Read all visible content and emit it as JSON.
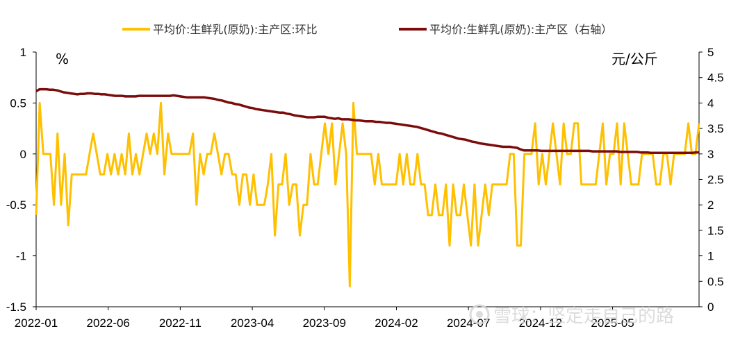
{
  "colors": {
    "series_mom": "#FFC000",
    "series_price": "#7B0C0C",
    "axis": "#000000"
  },
  "watermark": {
    "text": "雪球：坚定走自己的路",
    "icon": "snowball-logo-icon"
  },
  "chart_data": {
    "type": "line",
    "left_unit": "%",
    "right_unit": "元/公斤",
    "legend_position": "top",
    "grid": false,
    "x_start": "2022-01",
    "x_ticks": [
      "2022-01",
      "2022-06",
      "2022-11",
      "2023-04",
      "2023-09",
      "2024-02",
      "2024-07",
      "2024-12",
      "2025-05"
    ],
    "y_left": {
      "min": -1.5,
      "max": 1,
      "ticks": [
        "1",
        "0.5",
        "0",
        "-0.5",
        "-1",
        "-1.5"
      ]
    },
    "y_right": {
      "min": 0,
      "max": 5,
      "ticks": [
        "5",
        "4.5",
        "4",
        "3.5",
        "3",
        "2.5",
        "2",
        "1.5",
        "1",
        "0.5",
        "0"
      ]
    },
    "series": [
      {
        "name": "平均价:生鲜乳(原奶):主产区:环比",
        "axis": "left",
        "note": "weekly values, one point per week starting 2022-01",
        "values": [
          -0.6,
          0.5,
          0,
          0,
          0,
          -0.5,
          0.2,
          -0.5,
          0,
          -0.7,
          -0.2,
          -0.2,
          -0.2,
          -0.2,
          -0.2,
          0,
          0.2,
          0,
          -0.2,
          -0.2,
          0,
          -0.2,
          0,
          -0.2,
          0,
          -0.2,
          0.2,
          -0.2,
          0,
          -0.2,
          0,
          0.2,
          0,
          0.2,
          0,
          0.5,
          -0.2,
          0.2,
          0,
          0,
          0,
          0,
          0,
          0,
          0.2,
          -0.5,
          0,
          -0.2,
          0,
          0,
          0.2,
          0,
          -0.2,
          0,
          0,
          -0.2,
          -0.2,
          -0.5,
          -0.2,
          -0.2,
          -0.5,
          -0.2,
          -0.5,
          -0.5,
          -0.5,
          -0.3,
          0,
          -0.8,
          -0.3,
          -0.3,
          0,
          -0.5,
          -0.3,
          -0.3,
          -0.8,
          -0.5,
          -0.5,
          0,
          -0.3,
          -0.3,
          0,
          0.3,
          0,
          0.3,
          -0.3,
          0,
          0.3,
          0,
          -1.3,
          0.5,
          0,
          0,
          0,
          0,
          0,
          -0.3,
          0,
          -0.3,
          -0.3,
          -0.3,
          -0.3,
          -0.3,
          0,
          -0.3,
          0,
          -0.3,
          -0.3,
          0,
          -0.3,
          -0.3,
          -0.6,
          -0.6,
          -0.3,
          -0.6,
          -0.6,
          -0.3,
          -0.9,
          -0.3,
          -0.6,
          -0.6,
          -0.3,
          -0.6,
          -0.9,
          -0.3,
          -0.9,
          -0.6,
          -0.3,
          -0.6,
          -0.3,
          -0.3,
          -0.3,
          -0.3,
          -0.3,
          0,
          0,
          -0.9,
          -0.9,
          0,
          0,
          0,
          0.3,
          -0.3,
          0,
          -0.3,
          0,
          0.3,
          0,
          -0.3,
          0.3,
          0,
          0,
          0.3,
          0.3,
          -0.3,
          -0.3,
          -0.3,
          -0.3,
          -0.3,
          0,
          0.3,
          -0.3,
          0,
          0,
          0.3,
          -0.3,
          0.3,
          0,
          -0.3,
          -0.3,
          -0.3,
          0,
          0,
          0,
          0,
          -0.3,
          -0.3,
          0,
          0,
          -0.3,
          0,
          0,
          0,
          0,
          0.3,
          0,
          0,
          0.3
        ]
      },
      {
        "name": "平均价:生鲜乳(原奶):主产区（右轴）",
        "axis": "right",
        "note": "price in 元/公斤, one point per week starting 2022-01",
        "values": [
          4.23,
          4.27,
          4.27,
          4.27,
          4.26,
          4.26,
          4.25,
          4.23,
          4.21,
          4.2,
          4.19,
          4.18,
          4.17,
          4.18,
          4.18,
          4.19,
          4.19,
          4.18,
          4.18,
          4.17,
          4.17,
          4.16,
          4.15,
          4.14,
          4.14,
          4.14,
          4.13,
          4.13,
          4.13,
          4.13,
          4.14,
          4.14,
          4.14,
          4.14,
          4.14,
          4.14,
          4.14,
          4.14,
          4.14,
          4.14,
          4.15,
          4.14,
          4.13,
          4.12,
          4.11,
          4.11,
          4.11,
          4.11,
          4.11,
          4.11,
          4.1,
          4.09,
          4.08,
          4.06,
          4.05,
          4.03,
          4.01,
          4.0,
          3.98,
          3.97,
          3.95,
          3.93,
          3.91,
          3.9,
          3.88,
          3.87,
          3.86,
          3.85,
          3.84,
          3.83,
          3.82,
          3.81,
          3.81,
          3.79,
          3.78,
          3.76,
          3.75,
          3.74,
          3.73,
          3.72,
          3.72,
          3.72,
          3.73,
          3.73,
          3.73,
          3.71,
          3.7,
          3.69,
          3.7,
          3.68,
          3.68,
          3.68,
          3.67,
          3.66,
          3.66,
          3.65,
          3.64,
          3.64,
          3.64,
          3.63,
          3.63,
          3.62,
          3.61,
          3.61,
          3.6,
          3.59,
          3.58,
          3.57,
          3.56,
          3.55,
          3.54,
          3.53,
          3.51,
          3.49,
          3.47,
          3.45,
          3.43,
          3.41,
          3.4,
          3.38,
          3.36,
          3.34,
          3.32,
          3.3,
          3.29,
          3.28,
          3.26,
          3.24,
          3.23,
          3.21,
          3.2,
          3.19,
          3.18,
          3.17,
          3.16,
          3.15,
          3.14,
          3.14,
          3.14,
          3.13,
          3.12,
          3.09,
          3.07,
          3.07,
          3.07,
          3.07,
          3.07,
          3.06,
          3.06,
          3.06,
          3.06,
          3.06,
          3.06,
          3.06,
          3.06,
          3.06,
          3.06,
          3.06,
          3.06,
          3.06,
          3.06,
          3.06,
          3.05,
          3.05,
          3.05,
          3.05,
          3.05,
          3.05,
          3.05,
          3.05,
          3.04,
          3.04,
          3.04,
          3.04,
          3.04,
          3.04,
          3.03,
          3.03,
          3.03,
          3.02,
          3.02,
          3.02,
          3.02,
          3.02,
          3.02,
          3.02,
          3.02,
          3.02,
          3.02,
          3.02,
          3.02,
          3.02,
          3.03,
          3.03
        ]
      }
    ]
  }
}
